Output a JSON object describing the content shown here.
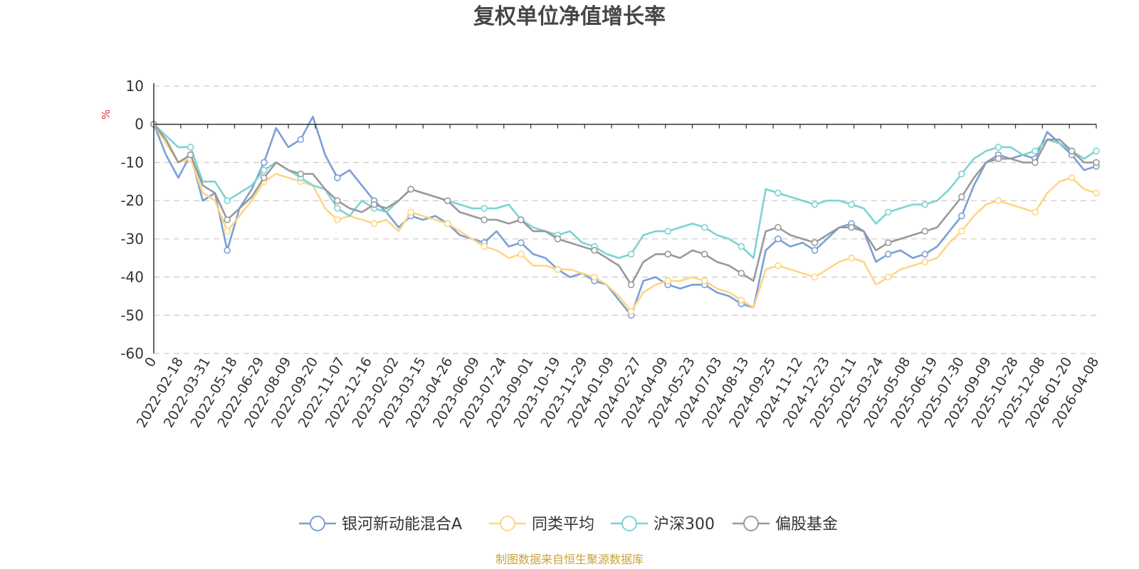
{
  "chart_data": {
    "type": "line",
    "title": "复权单位净值增长率",
    "ylabel": "%",
    "ylim": [
      -60,
      10
    ],
    "yticks": [
      10,
      0,
      -10,
      -20,
      -30,
      -40,
      -50,
      -60
    ],
    "grid": true,
    "legend_position": "bottom",
    "x_tick_labels": [
      "0",
      "2022-02-18",
      "2022-03-31",
      "2022-05-18",
      "2022-06-29",
      "2022-08-09",
      "2022-09-20",
      "2022-11-07",
      "2022-12-16",
      "2023-02-02",
      "2023-03-15",
      "2023-04-26",
      "2023-06-09",
      "2023-07-24",
      "2023-09-01",
      "2023-10-19",
      "2023-11-29",
      "2024-01-09",
      "2024-02-27",
      "2024-04-09",
      "2024-05-23",
      "2024-07-03",
      "2024-08-13",
      "2024-09-25",
      "2024-11-12",
      "2024-12-23",
      "2025-02-11",
      "2025-03-24",
      "2025-05-08",
      "2025-06-19",
      "2025-07-30",
      "2025-09-09",
      "2025-10-28",
      "2025-12-08",
      "2026-01-20",
      "2026-04-08"
    ],
    "series": [
      {
        "name": "银河新动能混合A",
        "color": "#7b9fd6",
        "values": [
          0,
          -8,
          -14,
          -8,
          -20,
          -18,
          -33,
          -22,
          -17,
          -10,
          -1,
          -6,
          -4,
          2,
          -8,
          -14,
          -12,
          -16,
          -20,
          -23,
          -27,
          -24,
          -25,
          -24,
          -26,
          -29,
          -30,
          -31,
          -28,
          -32,
          -31,
          -34,
          -35,
          -38,
          -40,
          -39,
          -41,
          -42,
          -46,
          -50,
          -41,
          -40,
          -42,
          -43,
          -42,
          -42,
          -44,
          -45,
          -47,
          -48,
          -33,
          -30,
          -32,
          -31,
          -33,
          -30,
          -27,
          -26,
          -28,
          -36,
          -34,
          -33,
          -35,
          -34,
          -32,
          -28,
          -24,
          -16,
          -10,
          -8,
          -9,
          -8,
          -9,
          -2,
          -5,
          -8,
          -12,
          -11
        ]
      },
      {
        "name": "同类平均",
        "color": "#ffd585",
        "values": [
          0,
          -5,
          -10,
          -9,
          -18,
          -20,
          -28,
          -24,
          -20,
          -15,
          -13,
          -14,
          -15,
          -16,
          -22,
          -25,
          -24,
          -25,
          -26,
          -25,
          -28,
          -23,
          -24,
          -25,
          -26,
          -28,
          -30,
          -32,
          -33,
          -35,
          -34,
          -37,
          -37,
          -38,
          -38,
          -39,
          -40,
          -42,
          -45,
          -49,
          -44,
          -42,
          -41,
          -41,
          -40,
          -41,
          -43,
          -44,
          -46,
          -48,
          -38,
          -37,
          -38,
          -39,
          -40,
          -38,
          -36,
          -35,
          -36,
          -42,
          -40,
          -38,
          -37,
          -36,
          -35,
          -31,
          -28,
          -24,
          -21,
          -20,
          -21,
          -22,
          -23,
          -18,
          -15,
          -14,
          -17,
          -18
        ]
      },
      {
        "name": "沪深300",
        "color": "#7dd3d2",
        "values": [
          0,
          -3,
          -6,
          -6,
          -15,
          -15,
          -20,
          -18,
          -16,
          -12,
          -10,
          -12,
          -14,
          -16,
          -17,
          -22,
          -24,
          -20,
          -22,
          -23,
          -20,
          -17,
          -18,
          -19,
          -20,
          -21,
          -22,
          -22,
          -22,
          -21,
          -25,
          -27,
          -28,
          -29,
          -28,
          -31,
          -32,
          -34,
          -35,
          -34,
          -29,
          -28,
          -28,
          -27,
          -26,
          -27,
          -29,
          -30,
          -32,
          -35,
          -17,
          -18,
          -19,
          -20,
          -21,
          -20,
          -20,
          -21,
          -22,
          -26,
          -23,
          -22,
          -21,
          -21,
          -20,
          -17,
          -13,
          -9,
          -7,
          -6,
          -6,
          -8,
          -7,
          -4,
          -5,
          -7,
          -9,
          -7
        ]
      },
      {
        "name": "偏股基金",
        "color": "#999999",
        "values": [
          0,
          -4,
          -10,
          -8,
          -16,
          -18,
          -25,
          -22,
          -19,
          -14,
          -10,
          -12,
          -13,
          -13,
          -17,
          -20,
          -22,
          -23,
          -21,
          -22,
          -20,
          -17,
          -18,
          -19,
          -20,
          -23,
          -24,
          -25,
          -25,
          -26,
          -25,
          -28,
          -28,
          -30,
          -31,
          -32,
          -33,
          -35,
          -37,
          -42,
          -36,
          -34,
          -34,
          -35,
          -33,
          -34,
          -36,
          -37,
          -39,
          -41,
          -28,
          -27,
          -29,
          -30,
          -31,
          -29,
          -27,
          -27,
          -28,
          -33,
          -31,
          -30,
          -29,
          -28,
          -27,
          -23,
          -19,
          -14,
          -10,
          -9,
          -9,
          -10,
          -10,
          -4,
          -4,
          -7,
          -10,
          -10
        ]
      }
    ]
  },
  "source_note": "制图数据来自恒生聚源数据库"
}
